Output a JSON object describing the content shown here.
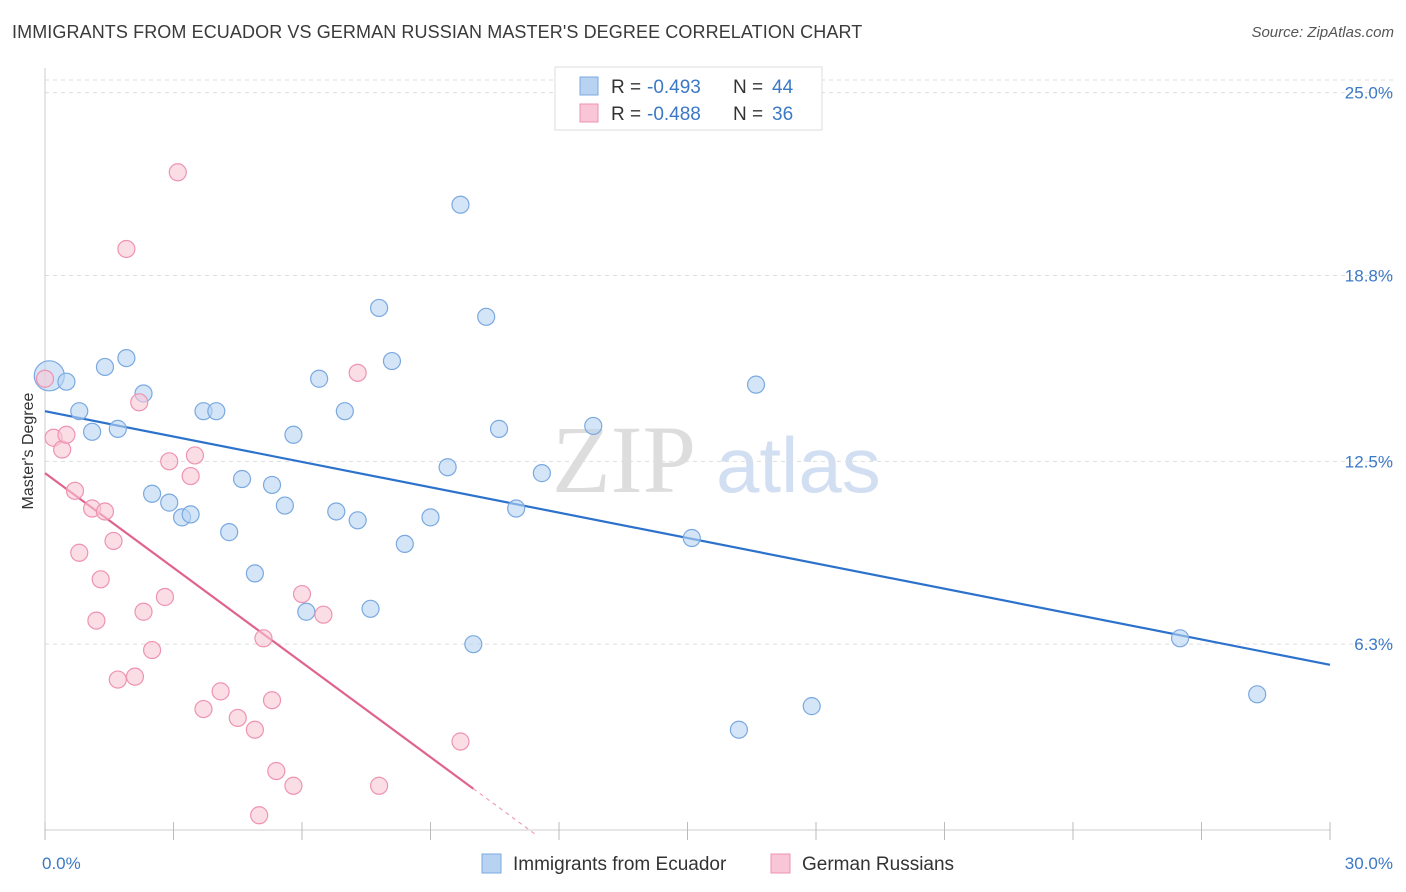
{
  "title": "IMMIGRANTS FROM ECUADOR VS GERMAN RUSSIAN MASTER'S DEGREE CORRELATION CHART",
  "source": "Source: ZipAtlas.com",
  "watermark": {
    "zip": "ZIP",
    "atlas": "atlas"
  },
  "colors": {
    "blue_fill": "#b8d3f2",
    "blue_stroke": "#7aa9e0",
    "blue_line": "#2c72cc",
    "pink_fill": "#f8c6d6",
    "pink_stroke": "#ee93b1",
    "pink_line": "#e0638f",
    "tick_text": "#3b78c6",
    "grid": "#dddddd"
  },
  "legend": {
    "r_label": "R =",
    "n_label": "N =",
    "rows": [
      {
        "series": "blue",
        "r": "-0.493",
        "n": "44"
      },
      {
        "series": "pink",
        "r": "-0.488",
        "n": "36"
      }
    ]
  },
  "chart_data": {
    "type": "scatter",
    "xlabel": "",
    "ylabel": "Master's Degree",
    "xlim": [
      0,
      30
    ],
    "ylim": [
      0,
      25.7
    ],
    "x_tick_labels": {
      "left": "0.0%",
      "right": "30.0%"
    },
    "y_ticks": [
      {
        "value": 25.0,
        "label": "25.0%"
      },
      {
        "value": 18.8,
        "label": "18.8%"
      },
      {
        "value": 12.5,
        "label": "12.5%"
      },
      {
        "value": 6.3,
        "label": "6.3%"
      }
    ],
    "grid": true,
    "legend_position": "top-center",
    "series": [
      {
        "name": "Immigrants from Ecuador",
        "color": "blue",
        "points": [
          [
            0.1,
            15.4
          ],
          [
            0.5,
            15.2
          ],
          [
            0.8,
            14.2
          ],
          [
            1.1,
            13.5
          ],
          [
            1.4,
            15.7
          ],
          [
            1.7,
            13.6
          ],
          [
            1.9,
            16.0
          ],
          [
            2.3,
            14.8
          ],
          [
            2.5,
            11.4
          ],
          [
            2.9,
            11.1
          ],
          [
            3.2,
            10.6
          ],
          [
            3.4,
            10.7
          ],
          [
            3.7,
            14.2
          ],
          [
            4.0,
            14.2
          ],
          [
            4.3,
            10.1
          ],
          [
            4.6,
            11.9
          ],
          [
            4.9,
            8.7
          ],
          [
            5.3,
            11.7
          ],
          [
            5.6,
            11.0
          ],
          [
            5.8,
            13.4
          ],
          [
            6.1,
            7.4
          ],
          [
            6.4,
            15.3
          ],
          [
            6.8,
            10.8
          ],
          [
            7.0,
            14.2
          ],
          [
            7.3,
            10.5
          ],
          [
            7.6,
            7.5
          ],
          [
            7.8,
            17.7
          ],
          [
            8.1,
            15.9
          ],
          [
            8.4,
            9.7
          ],
          [
            9.0,
            10.6
          ],
          [
            9.4,
            12.3
          ],
          [
            9.7,
            21.2
          ],
          [
            10.0,
            6.3
          ],
          [
            10.3,
            17.4
          ],
          [
            10.6,
            13.6
          ],
          [
            11.0,
            10.9
          ],
          [
            11.6,
            12.1
          ],
          [
            12.8,
            13.7
          ],
          [
            15.1,
            9.9
          ],
          [
            16.2,
            3.4
          ],
          [
            16.6,
            15.1
          ],
          [
            17.9,
            4.2
          ],
          [
            26.5,
            6.5
          ],
          [
            28.3,
            4.6
          ]
        ],
        "trend": {
          "x": [
            0,
            30
          ],
          "y": [
            14.2,
            5.6
          ]
        }
      },
      {
        "name": "German Russians",
        "color": "pink",
        "points": [
          [
            0.0,
            15.3
          ],
          [
            0.2,
            13.3
          ],
          [
            0.4,
            12.9
          ],
          [
            0.5,
            13.4
          ],
          [
            0.7,
            11.5
          ],
          [
            0.8,
            9.4
          ],
          [
            1.1,
            10.9
          ],
          [
            1.2,
            7.1
          ],
          [
            1.3,
            8.5
          ],
          [
            1.4,
            10.8
          ],
          [
            1.6,
            9.8
          ],
          [
            1.7,
            5.1
          ],
          [
            1.9,
            19.7
          ],
          [
            2.1,
            5.2
          ],
          [
            2.2,
            14.5
          ],
          [
            2.3,
            7.4
          ],
          [
            2.5,
            6.1
          ],
          [
            2.8,
            7.9
          ],
          [
            2.9,
            12.5
          ],
          [
            3.1,
            22.3
          ],
          [
            3.4,
            12.0
          ],
          [
            3.5,
            12.7
          ],
          [
            3.7,
            4.1
          ],
          [
            4.1,
            4.7
          ],
          [
            4.5,
            3.8
          ],
          [
            4.9,
            3.4
          ],
          [
            5.0,
            0.5
          ],
          [
            5.1,
            6.5
          ],
          [
            5.3,
            4.4
          ],
          [
            5.4,
            2.0
          ],
          [
            5.8,
            1.5
          ],
          [
            6.0,
            8.0
          ],
          [
            6.5,
            7.3
          ],
          [
            7.3,
            15.5
          ],
          [
            7.8,
            1.5
          ],
          [
            9.7,
            3.0
          ]
        ],
        "trend": {
          "x": [
            0,
            10.0
          ],
          "y": [
            12.1,
            1.4
          ]
        },
        "trend_extension": {
          "x": [
            10.0,
            11.5
          ],
          "y": [
            1.4,
            -0.2
          ]
        }
      }
    ]
  },
  "bottom_legend": [
    {
      "series": "blue",
      "label": "Immigrants from Ecuador"
    },
    {
      "series": "pink",
      "label": "German Russians"
    }
  ]
}
